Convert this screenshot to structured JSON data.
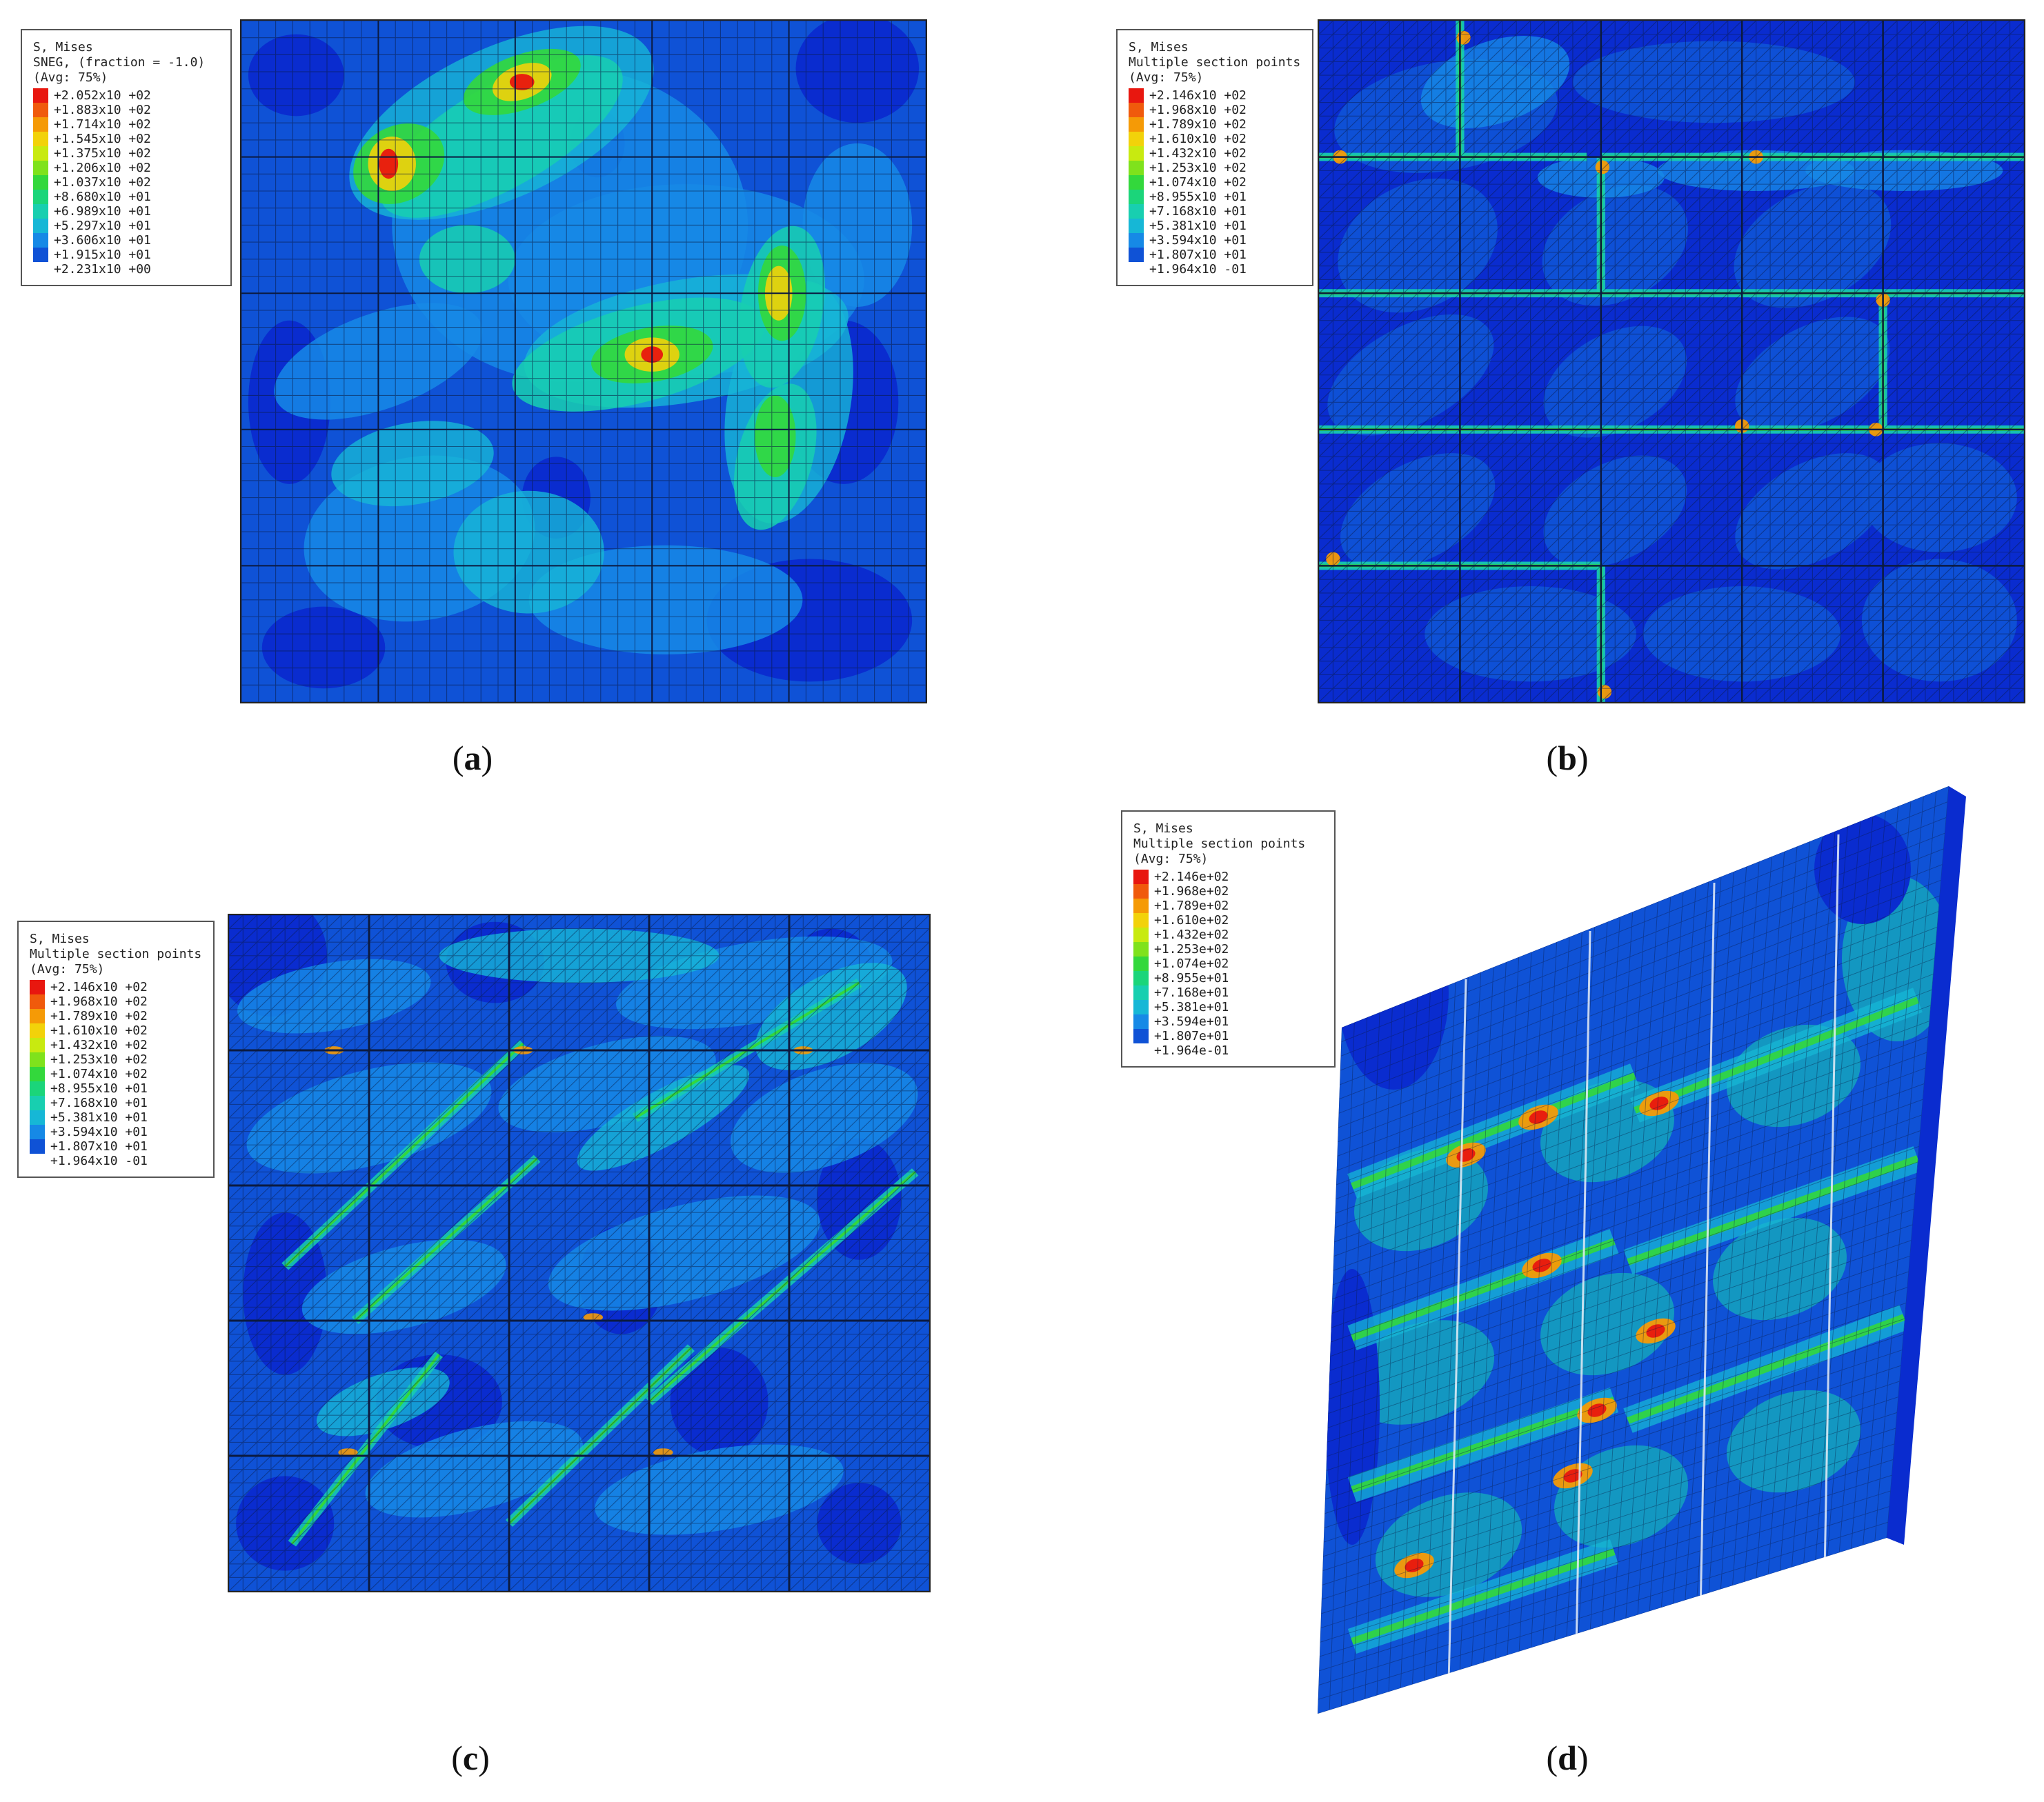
{
  "panels": {
    "a": {
      "caption": "a",
      "legend": {
        "title1": "S, Mises",
        "title2": "SNEG, (fraction = -1.0)",
        "title3": "(Avg: 75%)",
        "values": [
          "+2.052x10 +02",
          "+1.883x10 +02",
          "+1.714x10 +02",
          "+1.545x10 +02",
          "+1.375x10 +02",
          "+1.206x10 +02",
          "+1.037x10 +02",
          "+8.680x10 +01",
          "+6.989x10 +01",
          "+5.297x10 +01",
          "+3.606x10 +01",
          "+1.915x10 +01",
          "+2.231x10 +00"
        ]
      }
    },
    "b": {
      "caption": "b",
      "legend": {
        "title1": "S, Mises",
        "title2": "Multiple section points",
        "title3": "(Avg: 75%)",
        "values": [
          "+2.146x10 +02",
          "+1.968x10 +02",
          "+1.789x10 +02",
          "+1.610x10 +02",
          "+1.432x10 +02",
          "+1.253x10 +02",
          "+1.074x10 +02",
          "+8.955x10 +01",
          "+7.168x10 +01",
          "+5.381x10 +01",
          "+3.594x10 +01",
          "+1.807x10 +01",
          "+1.964x10 -01"
        ]
      }
    },
    "c": {
      "caption": "c",
      "legend": {
        "title1": "S, Mises",
        "title2": "Multiple section points",
        "title3": "(Avg: 75%)",
        "values": [
          "+2.146x10 +02",
          "+1.968x10 +02",
          "+1.789x10 +02",
          "+1.610x10 +02",
          "+1.432x10 +02",
          "+1.253x10 +02",
          "+1.074x10 +02",
          "+8.955x10 +01",
          "+7.168x10 +01",
          "+5.381x10 +01",
          "+3.594x10 +01",
          "+1.807x10 +01",
          "+1.964x10 -01"
        ]
      }
    },
    "d": {
      "caption": "d",
      "legend": {
        "title1": "S, Mises",
        "title2": "Multiple section points",
        "title3": "(Avg: 75%)",
        "values": [
          "+2.146e+02",
          "+1.968e+02",
          "+1.789e+02",
          "+1.610e+02",
          "+1.432e+02",
          "+1.253e+02",
          "+1.074e+02",
          "+8.955e+01",
          "+7.168e+01",
          "+5.381e+01",
          "+3.594e+01",
          "+1.807e+01",
          "+1.964e-01"
        ]
      }
    }
  },
  "colormap": [
    "#e8170f",
    "#f05a0c",
    "#f59a06",
    "#f2d20a",
    "#c8ea10",
    "#7fe21c",
    "#33d83c",
    "#1bd57a",
    "#18cfb0",
    "#16b7d6",
    "#1689e6",
    "#0f52d6",
    "#0a2ccf"
  ]
}
